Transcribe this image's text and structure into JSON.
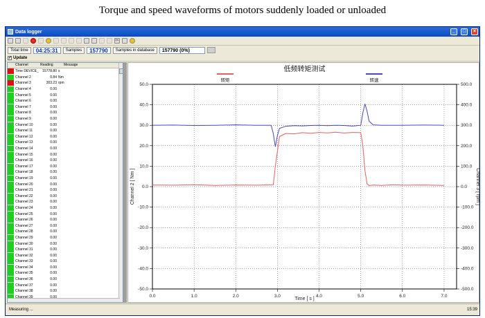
{
  "caption": "Torque and speed waveforms of motors suddenly loaded or unloaded",
  "window": {
    "title": "Data logger"
  },
  "toolbar": {
    "icons": [
      "new-icon",
      "open-icon",
      "arrow-icon",
      "stop-icon",
      "record-icon",
      "bulb-icon",
      "grid-icon",
      "grid-icon",
      "grid-icon",
      "list-icon",
      "save-icon",
      "print-icon",
      "undo-icon",
      "redo-icon",
      "cut-icon",
      "chart-icon",
      "help-icon"
    ]
  },
  "status": {
    "total_time_label": "Total time",
    "total_time": "04:25:31",
    "samples_label": "Samples",
    "samples": "157790",
    "samples_db_label": "Samples in database",
    "samples_db": "157790 (0%)"
  },
  "update_label": "Update",
  "table": {
    "headers": [
      "Channel",
      "Reading",
      "Message"
    ],
    "rows": [
      {
        "name": "Time  DEVICE_",
        "reading": "15778.80",
        "unit": "s",
        "color": "red"
      },
      {
        "name": "Channel 2",
        "reading": "0.84",
        "unit": "Nm",
        "color": "green"
      },
      {
        "name": "Channel 3",
        "reading": "303.23",
        "unit": "rpm",
        "color": "red"
      },
      {
        "name": "Channel 4",
        "reading": "0.00",
        "unit": "",
        "color": "green"
      },
      {
        "name": "Channel 5",
        "reading": "0.00",
        "unit": "",
        "color": "green"
      },
      {
        "name": "Channel 6",
        "reading": "0.00",
        "unit": "",
        "color": "green"
      },
      {
        "name": "Channel 7",
        "reading": "0.00",
        "unit": "",
        "color": "green"
      },
      {
        "name": "Channel 8",
        "reading": "0.00",
        "unit": "",
        "color": "green"
      },
      {
        "name": "Channel 9",
        "reading": "0.00",
        "unit": "",
        "color": "green"
      },
      {
        "name": "Channel 10",
        "reading": "0.00",
        "unit": "",
        "color": "green"
      },
      {
        "name": "Channel 11",
        "reading": "0.00",
        "unit": "",
        "color": "green"
      },
      {
        "name": "Channel 12",
        "reading": "0.00",
        "unit": "",
        "color": "green"
      },
      {
        "name": "Channel 13",
        "reading": "0.00",
        "unit": "",
        "color": "green"
      },
      {
        "name": "Channel 14",
        "reading": "0.00",
        "unit": "",
        "color": "green"
      },
      {
        "name": "Channel 15",
        "reading": "0.00",
        "unit": "",
        "color": "green"
      },
      {
        "name": "Channel 16",
        "reading": "0.00",
        "unit": "",
        "color": "green"
      },
      {
        "name": "Channel 17",
        "reading": "0.00",
        "unit": "",
        "color": "green"
      },
      {
        "name": "Channel 18",
        "reading": "0.00",
        "unit": "",
        "color": "green"
      },
      {
        "name": "Channel 19",
        "reading": "0.00",
        "unit": "",
        "color": "green"
      },
      {
        "name": "Channel 20",
        "reading": "0.00",
        "unit": "",
        "color": "green"
      },
      {
        "name": "Channel 21",
        "reading": "0.00",
        "unit": "",
        "color": "green"
      },
      {
        "name": "Channel 22",
        "reading": "0.00",
        "unit": "",
        "color": "green"
      },
      {
        "name": "Channel 23",
        "reading": "0.00",
        "unit": "",
        "color": "green"
      },
      {
        "name": "Channel 24",
        "reading": "0.00",
        "unit": "",
        "color": "green"
      },
      {
        "name": "Channel 25",
        "reading": "0.00",
        "unit": "",
        "color": "green"
      },
      {
        "name": "Channel 26",
        "reading": "0.00",
        "unit": "",
        "color": "green"
      },
      {
        "name": "Channel 27",
        "reading": "0.00",
        "unit": "",
        "color": "green"
      },
      {
        "name": "Channel 28",
        "reading": "0.00",
        "unit": "",
        "color": "green"
      },
      {
        "name": "Channel 29",
        "reading": "0.00",
        "unit": "",
        "color": "green"
      },
      {
        "name": "Channel 30",
        "reading": "0.00",
        "unit": "",
        "color": "green"
      },
      {
        "name": "Channel 31",
        "reading": "0.00",
        "unit": "",
        "color": "green"
      },
      {
        "name": "Channel 32",
        "reading": "0.00",
        "unit": "",
        "color": "green"
      },
      {
        "name": "Channel 33",
        "reading": "0.00",
        "unit": "",
        "color": "green"
      },
      {
        "name": "Channel 34",
        "reading": "0.00",
        "unit": "",
        "color": "green"
      },
      {
        "name": "Channel 35",
        "reading": "0.00",
        "unit": "",
        "color": "green"
      },
      {
        "name": "Channel 36",
        "reading": "0.00",
        "unit": "",
        "color": "green"
      },
      {
        "name": "Channel 37",
        "reading": "0.00",
        "unit": "",
        "color": "green"
      },
      {
        "name": "Channel 38",
        "reading": "0.00",
        "unit": "",
        "color": "green"
      },
      {
        "name": "Channel 39",
        "reading": "0.00",
        "unit": "",
        "color": "green"
      }
    ]
  },
  "colors": {
    "torque": "#e06060",
    "speed": "#4848b8",
    "indicator_green": "#1ed01e",
    "indicator_red": "#e01010"
  },
  "chart_data": {
    "type": "line",
    "title": "低频转矩测试",
    "xlabel": "Time [ s ]",
    "ylabel": "Channel 2 [ Nm ]",
    "y2label": "Channel 3 [ rpm ]",
    "xlim": [
      0,
      7.3
    ],
    "ylim": [
      -50,
      50
    ],
    "y2lim": [
      -500,
      500
    ],
    "xticks": [
      "0.0",
      "1.0",
      "2.0",
      "3.0",
      "4.0",
      "5.0",
      "6.0",
      "7.0"
    ],
    "yticks": [
      "50.0",
      "40.0",
      "30.0",
      "20.0",
      "10.0",
      "0.0",
      "-10.0",
      "-20.0",
      "-30.0",
      "-40.0",
      "-50.0"
    ],
    "y2ticks": [
      "500.0",
      "400.0",
      "300.0",
      "200.0",
      "100.0",
      "0.0",
      "-100.0",
      "-200.0",
      "-300.0",
      "-400.0",
      "-500.0"
    ],
    "grid": true,
    "legend_position": "top",
    "series": [
      {
        "name": "转矩",
        "axis": "left",
        "x": [
          0,
          0.5,
          1.0,
          1.5,
          2.0,
          2.5,
          2.9,
          2.95,
          3.05,
          3.2,
          3.4,
          3.6,
          3.8,
          4.0,
          4.2,
          4.4,
          4.6,
          4.8,
          5.0,
          5.05,
          5.1,
          5.15,
          5.2,
          5.3,
          5.5,
          5.8,
          6.0,
          6.5,
          7.0
        ],
        "values": [
          0.8,
          0.7,
          0.9,
          0.6,
          0.8,
          0.7,
          0.9,
          10,
          24.5,
          26,
          25.8,
          26.4,
          26.1,
          26.5,
          26.3,
          26.6,
          26.2,
          26.5,
          26.4,
          20,
          8,
          1.5,
          0.5,
          0.8,
          0.6,
          0.9,
          0.7,
          0.8,
          0.6
        ]
      },
      {
        "name": "转速",
        "axis": "right",
        "x": [
          0,
          0.5,
          1.0,
          1.5,
          2.0,
          2.5,
          2.85,
          2.9,
          2.95,
          3.0,
          3.05,
          3.2,
          3.4,
          3.6,
          3.8,
          4.0,
          4.2,
          4.4,
          4.6,
          4.8,
          5.0,
          5.05,
          5.1,
          5.15,
          5.2,
          5.3,
          5.5,
          6.0,
          6.5,
          7.0
        ],
        "values": [
          300,
          301,
          299,
          300,
          302,
          300,
          300,
          260,
          195,
          250,
          285,
          295,
          298,
          297,
          299,
          300,
          298,
          300,
          299,
          296,
          300,
          360,
          405,
          370,
          320,
          302,
          300,
          300,
          301,
          300
        ]
      }
    ]
  },
  "statusbar": {
    "left": "Measuring ...",
    "right": "15:39"
  }
}
